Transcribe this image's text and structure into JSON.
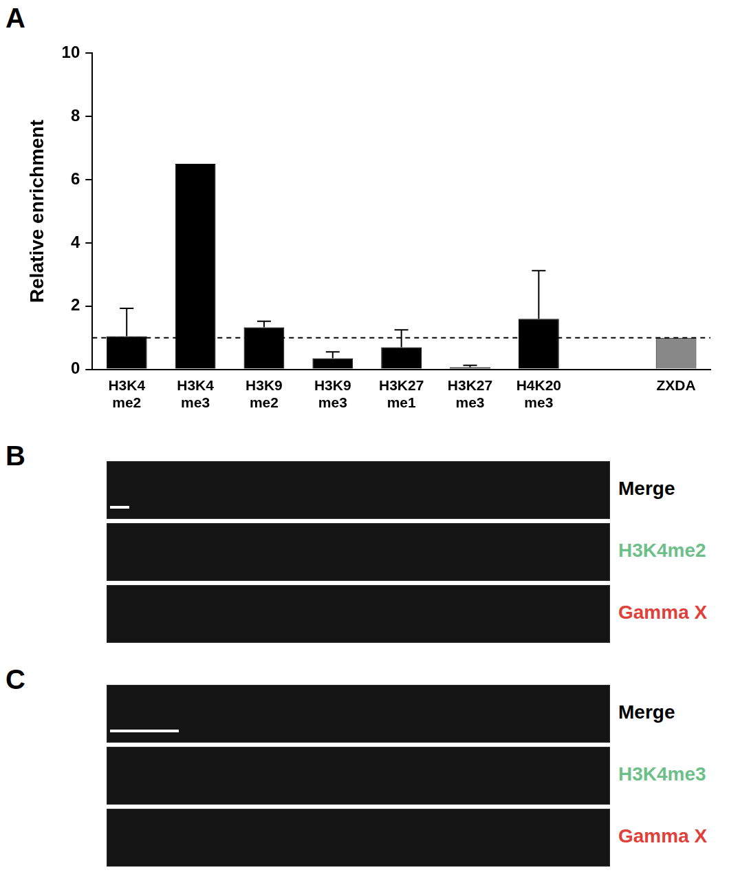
{
  "chart_data": {
    "type": "bar",
    "panel": "A",
    "categories": [
      "H3K4 me2",
      "H3K4 me3",
      "H3K9 me2",
      "H3K9 me3",
      "H3K27 me1",
      "H3K27 me3",
      "H4K20 me3",
      null,
      "ZXDA"
    ],
    "values": [
      1.05,
      6.5,
      1.33,
      0.35,
      0.7,
      0.07,
      1.6,
      null,
      1.0
    ],
    "errors": [
      0.88,
      null,
      0.19,
      0.2,
      0.55,
      0.06,
      1.52,
      null,
      null
    ],
    "colors": [
      "#000000",
      "#000000",
      "#000000",
      "#000000",
      "#000000",
      "#000000",
      "#000000",
      "#000000",
      "#888888"
    ],
    "ylabel": "Relative enrichment",
    "ylim": [
      0,
      10
    ],
    "yticks": [
      0,
      2,
      4,
      6,
      8,
      10
    ],
    "hlines": [
      1
    ],
    "grid": false
  },
  "image_panels": [
    {
      "panel": "B",
      "rows": [
        {
          "label": "Merge",
          "color": "#000000"
        },
        {
          "label": "H3K4me2",
          "color": "#6dbf8a"
        },
        {
          "label": "Gamma X",
          "color": "#e0403a"
        }
      ]
    },
    {
      "panel": "C",
      "rows": [
        {
          "label": "Merge",
          "color": "#000000"
        },
        {
          "label": "H3K4me3",
          "color": "#6dbf8a"
        },
        {
          "label": "Gamma X",
          "color": "#e0403a"
        }
      ]
    }
  ]
}
